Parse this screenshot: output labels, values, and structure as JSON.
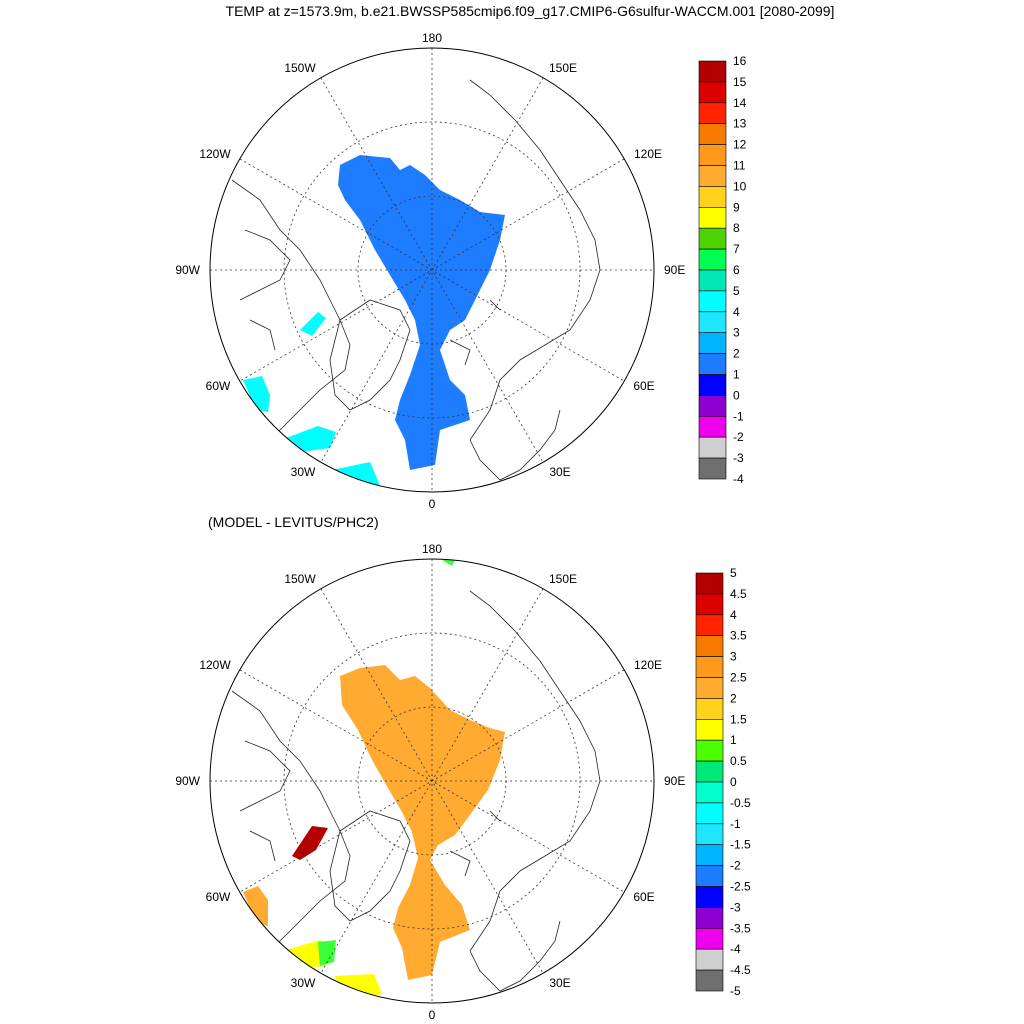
{
  "title": "TEMP at z=1573.9m, b.e21.BWSSP585cmip6.f09_g17.CMIP6-G6sulfur-WACCM.001 [2080-2099]",
  "diff_title": "(MODEL - LEVITUS/PHC2)",
  "lon_labels": {
    "top": "180",
    "bottom": "0",
    "left": "90W",
    "right": "90E",
    "tl1": "150W",
    "tl2": "120W",
    "bl1": "60W",
    "bl2": "30W",
    "tr1": "150E",
    "tr2": "120E",
    "br1": "60E",
    "br2": "30E"
  },
  "colors": {
    "main_fill": "#1e7dff",
    "diff_fill": "#ffab32",
    "cyan": "#00ffff",
    "dark_red": "#b40000",
    "yellow": "#ffff00",
    "green": "#3cff3c"
  },
  "top_colorbar": {
    "labels": [
      "16",
      "15",
      "14",
      "13",
      "12",
      "11",
      "10",
      "9",
      "8",
      "7",
      "6",
      "5",
      "4",
      "3",
      "2",
      "1",
      "0",
      "-1",
      "-2",
      "-3",
      "-4"
    ],
    "colors": [
      "#b40000",
      "#dc0000",
      "#ff2400",
      "#f57a00",
      "#fd9a1c",
      "#ffab32",
      "#ffd21c",
      "#ffff00",
      "#4cd300",
      "#00ff51",
      "#00e8b7",
      "#00ffff",
      "#1ee6ff",
      "#00b4ff",
      "#1e7dff",
      "#0000ff",
      "#8c00d2",
      "#ee00ee",
      "#cfcfcf",
      "#6f6f6f"
    ]
  },
  "bottom_colorbar": {
    "labels": [
      "5",
      "4.5",
      "4",
      "3.5",
      "3",
      "2.5",
      "2",
      "1.5",
      "1",
      "0.5",
      "0",
      "-0.5",
      "-1",
      "-1.5",
      "-2",
      "-2.5",
      "-3",
      "-3.5",
      "-4",
      "-4.5",
      "-5"
    ],
    "colors": [
      "#b40000",
      "#dc0000",
      "#ff2400",
      "#f57a00",
      "#fd9a1c",
      "#ffab32",
      "#ffd21c",
      "#ffff00",
      "#4cff00",
      "#00e878",
      "#00ffcc",
      "#00ffff",
      "#1ee6ff",
      "#00b4ff",
      "#1e7dff",
      "#0000ff",
      "#8c00d2",
      "#ee00ee",
      "#cfcfcf",
      "#6f6f6f"
    ]
  }
}
